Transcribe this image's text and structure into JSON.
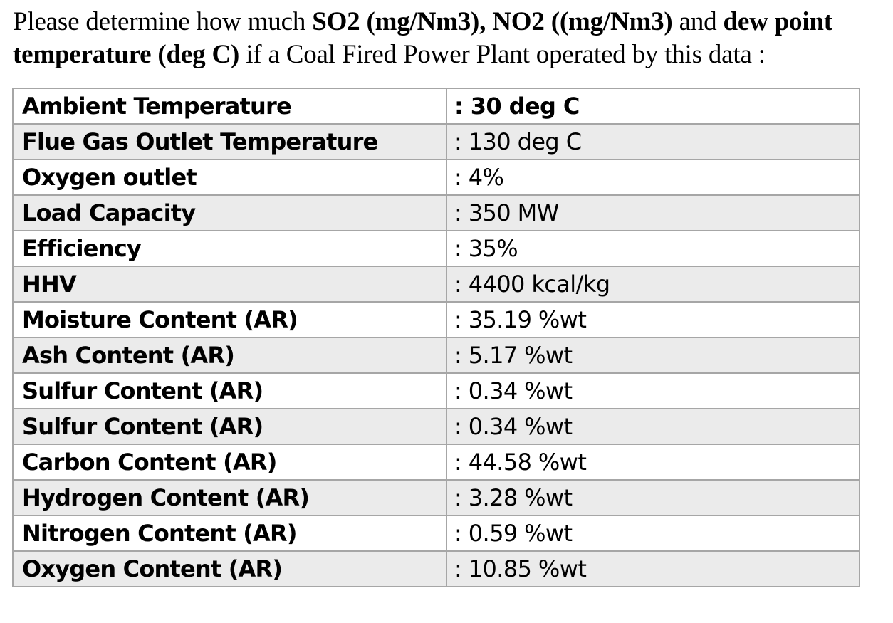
{
  "question": {
    "segments": [
      {
        "text": "Please determine how much ",
        "bold": false
      },
      {
        "text": "SO2 (mg/Nm3), NO2 ((mg/Nm3)",
        "bold": true
      },
      {
        "text": " and ",
        "bold": false
      },
      {
        "text": "dew point temperature (deg C)",
        "bold": true
      },
      {
        "text": " if a Coal Fired Power Plant operated by this data :",
        "bold": false
      }
    ]
  },
  "table": {
    "rows": [
      {
        "label": "Ambient Temperature",
        "value": ": 30 deg C"
      },
      {
        "label": "Flue Gas Outlet Temperature",
        "value": ": 130 deg C"
      },
      {
        "label": "Oxygen outlet",
        "value": ": 4%"
      },
      {
        "label": "Load Capacity",
        "value": ": 350 MW"
      },
      {
        "label": "Efficiency",
        "value": ": 35%"
      },
      {
        "label": "HHV",
        "value": ": 4400 kcal/kg"
      },
      {
        "label": "Moisture Content (AR)",
        "value": ": 35.19 %wt"
      },
      {
        "label": "Ash Content (AR)",
        "value": ": 5.17 %wt"
      },
      {
        "label": "Sulfur Content (AR)",
        "value": ": 0.34 %wt"
      },
      {
        "label": "Sulfur Content (AR)",
        "value": ": 0.34 %wt"
      },
      {
        "label": "Carbon Content (AR)",
        "value": ": 44.58 %wt"
      },
      {
        "label": "Hydrogen Content (AR)",
        "value": ": 3.28 %wt"
      },
      {
        "label": "Nitrogen Content (AR)",
        "value": ": 0.59 %wt"
      },
      {
        "label": "Oxygen Content (AR)",
        "value": ": 10.85 %wt"
      }
    ],
    "shaded_row_color": "#ebebeb",
    "border_color": "#a6a6a6"
  }
}
